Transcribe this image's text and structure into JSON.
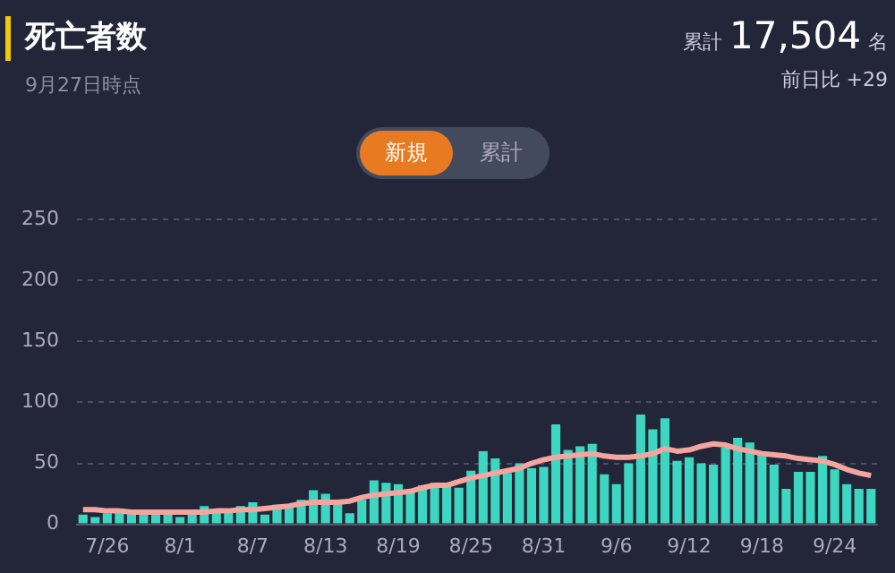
{
  "chart_data": {
    "type": "bar",
    "title": "死亡者数",
    "subtitle": "9月27日時点",
    "annotations": [
      "累計",
      "17,504",
      "名",
      "前日比 +29",
      "新規",
      "累計"
    ],
    "categories": [
      null,
      null,
      "7/26",
      null,
      null,
      null,
      null,
      null,
      "8/1",
      null,
      null,
      null,
      null,
      null,
      "8/7",
      null,
      null,
      null,
      null,
      null,
      "8/13",
      null,
      null,
      null,
      null,
      null,
      "8/19",
      null,
      null,
      null,
      null,
      null,
      "8/25",
      null,
      null,
      null,
      null,
      null,
      "8/31",
      null,
      null,
      null,
      null,
      null,
      "9/6",
      null,
      null,
      null,
      null,
      null,
      "9/12",
      null,
      null,
      null,
      null,
      null,
      "9/18",
      null,
      null,
      null,
      null,
      null,
      "9/24",
      null,
      null,
      null
    ],
    "series": [
      {
        "color": "#3dd6c0",
        "values": [
          8,
          6,
          9,
          13,
          9,
          12,
          10,
          11,
          6,
          9,
          15,
          10,
          10,
          15,
          18,
          8,
          16,
          14,
          20,
          28,
          25,
          17,
          9,
          20,
          36,
          34,
          33,
          27,
          32,
          34,
          32,
          30,
          44,
          60,
          54,
          42,
          50,
          46,
          47,
          82,
          61,
          64,
          66,
          41,
          33,
          50,
          90,
          78,
          87,
          52,
          55,
          50,
          49,
          63,
          71,
          67,
          58,
          49,
          29,
          43,
          43,
          56,
          45,
          33,
          29,
          29
        ]
      },
      {
        "type": "line",
        "color": "#f4a5a0",
        "values": [
          12,
          12,
          11,
          11,
          10,
          10,
          10,
          10,
          10,
          10,
          10,
          11,
          11,
          12,
          12,
          13,
          14,
          15,
          17,
          18,
          18,
          18,
          19,
          22,
          24,
          25,
          26,
          27,
          30,
          32,
          32,
          35,
          38,
          40,
          42,
          44,
          46,
          50,
          53,
          55,
          56,
          57,
          58,
          56,
          55,
          55,
          56,
          58,
          62,
          60,
          61,
          64,
          66,
          65,
          62,
          60,
          58,
          57,
          56,
          54,
          53,
          52,
          49,
          45,
          42,
          40
        ]
      }
    ],
    "ylim": [
      0,
      250
    ],
    "yticks": [
      0,
      50,
      100,
      150,
      200,
      250
    ],
    "grid": "y",
    "legend": false,
    "marker": "none",
    "line_style": "solid"
  }
}
